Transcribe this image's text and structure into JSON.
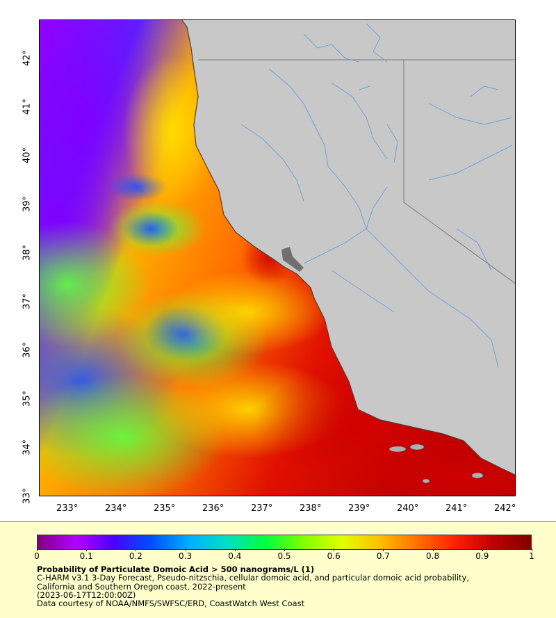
{
  "map": {
    "lon_ticks": [
      "233°",
      "234°",
      "235°",
      "236°",
      "237°",
      "238°",
      "239°",
      "240°",
      "241°",
      "242°"
    ],
    "lat_ticks": [
      "33°",
      "34°",
      "35°",
      "36°",
      "37°",
      "38°",
      "39°",
      "40°",
      "41°",
      "42°"
    ],
    "land_color": "#c8c8c8",
    "river_color": "#6fa0d8",
    "border_color": "#777777"
  },
  "legend": {
    "colorbar_ticks": [
      "0",
      "0.1",
      "0.2",
      "0.3",
      "0.4",
      "0.5",
      "0.6",
      "0.7",
      "0.8",
      "0.9",
      "1"
    ],
    "colormap": [
      "#800080",
      "#b400ff",
      "#4b00ff",
      "#0050ff",
      "#00b0ff",
      "#00e0c0",
      "#00ff40",
      "#80ff00",
      "#e0ff00",
      "#ffc000",
      "#ff7000",
      "#ff2000",
      "#c00000",
      "#800000"
    ],
    "title": "Probability of Particulate Domoic Acid > 500 nanograms/L (1)",
    "line1": "C-HARM v3.1 3-Day Forecast, Pseudo-nitzschia, cellular domoic acid, and particular domoic acid probability,",
    "line2": "California and Southern Oregon coast, 2022-present",
    "line3": "(2023-06-17T12:00:00Z)",
    "line4": "Data courtesy of NOAA/NMFS/SWFSC/ERD, CoastWatch West Coast"
  }
}
